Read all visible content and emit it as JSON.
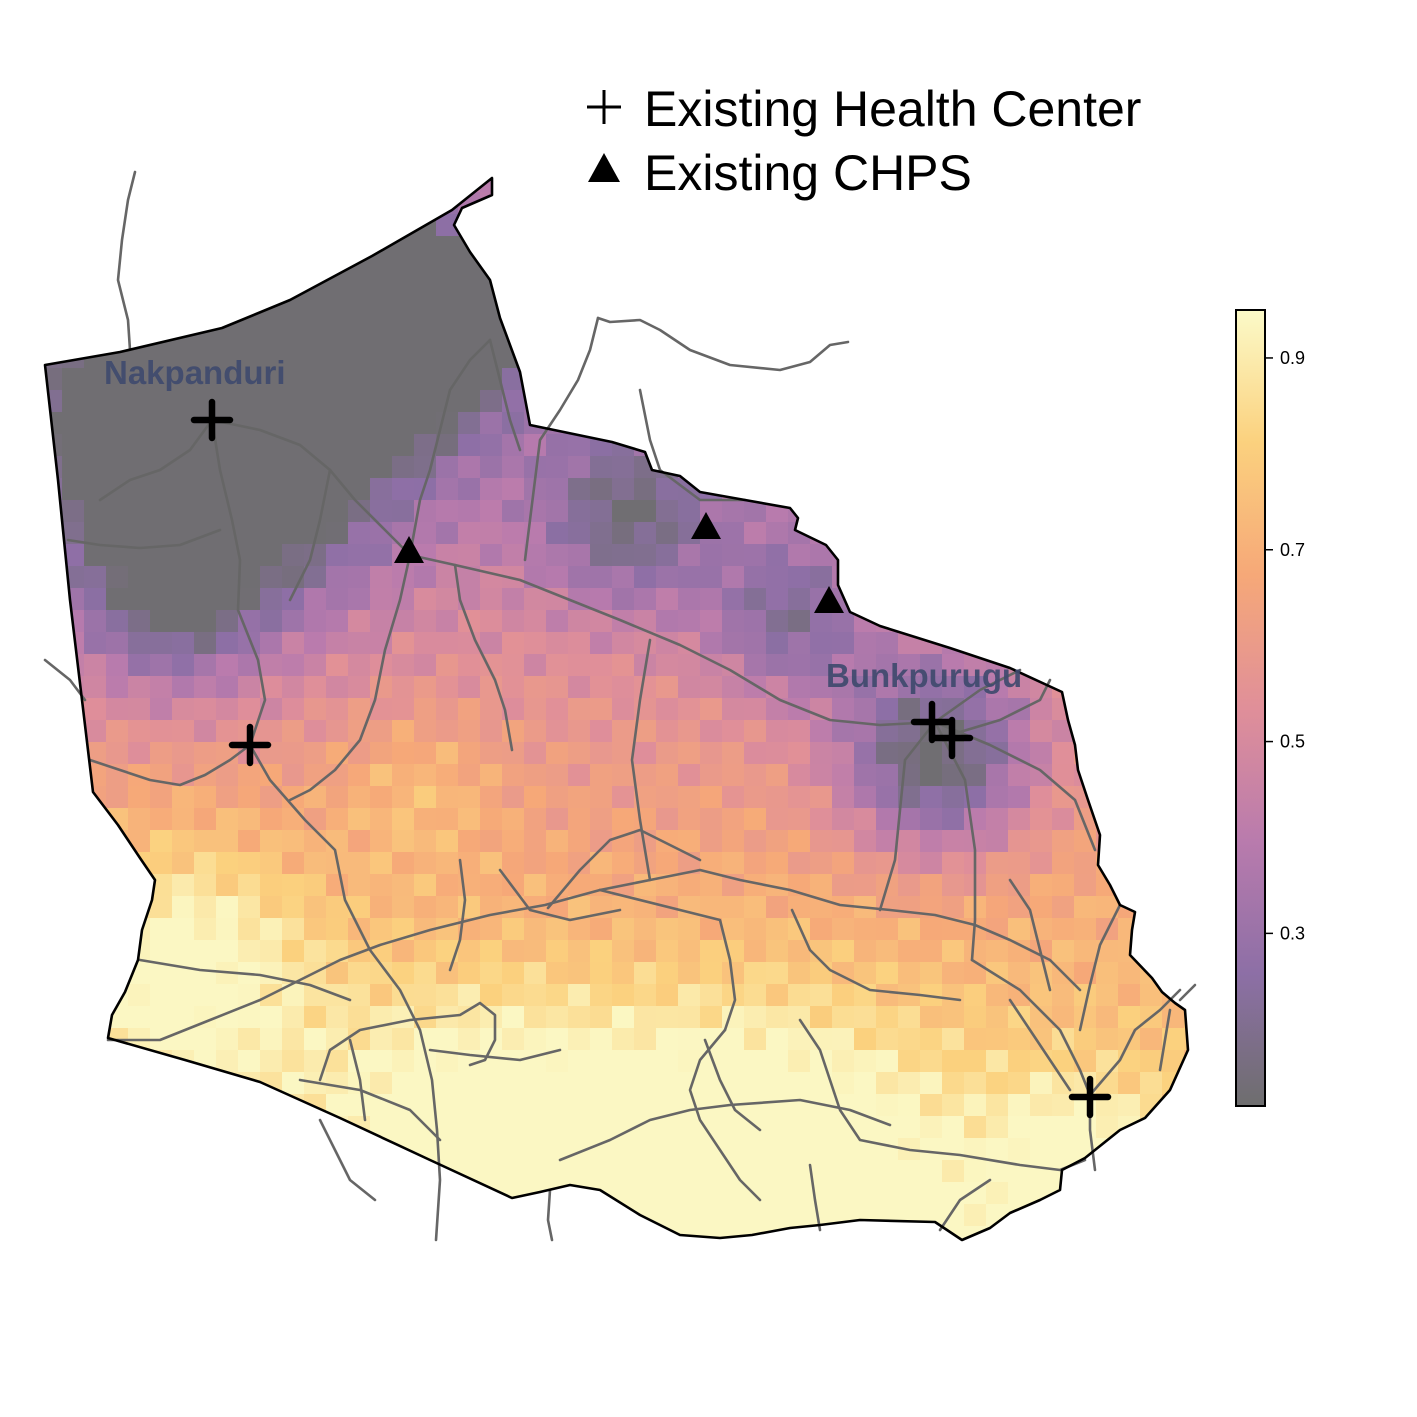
{
  "legend": {
    "items": [
      {
        "symbol": "plus",
        "label": "Existing Health Center"
      },
      {
        "symbol": "triangle",
        "label": "Existing CHPS"
      }
    ]
  },
  "towns": [
    {
      "name": "Nakpanduri"
    },
    {
      "name": "Bunkpurugu"
    }
  ],
  "colorbar": {
    "min": 0.12,
    "max": 0.95,
    "ticks": [
      {
        "value": 0.9,
        "label": "0.9"
      },
      {
        "value": 0.7,
        "label": "0.7"
      },
      {
        "value": 0.5,
        "label": "0.5"
      },
      {
        "value": 0.3,
        "label": "0.3"
      }
    ],
    "palette": [
      "#6e6e6e",
      "#8d6fa6",
      "#b97bad",
      "#e08f99",
      "#f6a878",
      "#fbd17e",
      "#fbfac8"
    ]
  },
  "colors": {
    "border": "#000000",
    "roads": "#666666",
    "markers": "#000000",
    "town_label": "#3f4a6e"
  }
}
